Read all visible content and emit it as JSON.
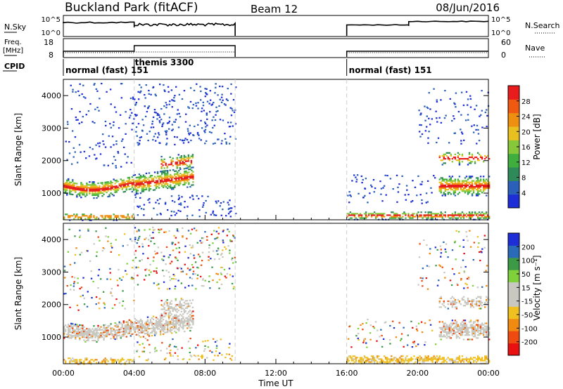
{
  "header": {
    "title": "Buckland Park (fitACF)",
    "beam": "Beam 12",
    "date": "08/Jun/2016"
  },
  "top_panels": {
    "nsky_label": "N.Sky",
    "nsky_ticks": [
      "10^5",
      "10^0"
    ],
    "nsearch_label": "N.Search",
    "nsearch_ticks": [
      "10^5",
      "10^0"
    ],
    "freq_label": "Freq.",
    "freq_unit": "[MHz]",
    "freq_ticks": [
      "18",
      "8"
    ],
    "nave_label": "Nave",
    "nave_ticks": [
      "60",
      "0"
    ],
    "cpid_label": "CPID",
    "cpid_segments": [
      {
        "label": "normal (fast) 151",
        "start": 0,
        "end": 4
      },
      {
        "label": "themis 3300",
        "start": 4,
        "end": 9.7
      },
      {
        "label": "normal (fast) 151",
        "start": 16,
        "end": 24
      }
    ]
  },
  "colors": {
    "power_scale": [
      "#1e2ed6",
      "#2a60b8",
      "#2f8a5a",
      "#3fae3f",
      "#86c83a",
      "#e8c020",
      "#ef8f10",
      "#ef5a10",
      "#e81c1c"
    ],
    "velocity_scale": [
      "#1e2ed6",
      "#2a6ab8",
      "#3c9a46",
      "#7fd03a",
      "#c8c8c0",
      "#c8c8c0",
      "#f0c020",
      "#f08a10",
      "#ef4a10",
      "#e81010"
    ]
  },
  "chart_data": [
    {
      "type": "heatmap",
      "title": "",
      "xlabel": "",
      "ylabel": "Slant Range [km]",
      "xlim": [
        0,
        24
      ],
      "ylim": [
        180,
        4500
      ],
      "x_tick_labels": [
        "00:00",
        "04:00",
        "08:00",
        "12:00",
        "16:00",
        "20:00",
        "00:00"
      ],
      "y_ticks": [
        1000,
        2000,
        3000,
        4000
      ],
      "colorbar": {
        "label": "Power [dB]",
        "ticks": [
          "4",
          "8",
          "12",
          "16",
          "20",
          "24",
          "28"
        ],
        "range": [
          0,
          30
        ]
      },
      "data_gaps": [
        [
          9.7,
          16.0
        ]
      ]
    },
    {
      "type": "heatmap",
      "title": "",
      "xlabel": "Time UT",
      "ylabel": "Slant Range [km]",
      "xlim": [
        0,
        24
      ],
      "ylim": [
        180,
        4500
      ],
      "x_tick_labels": [
        "00:00",
        "04:00",
        "08:00",
        "12:00",
        "16:00",
        "20:00",
        "00:00"
      ],
      "y_ticks": [
        1000,
        2000,
        3000,
        4000
      ],
      "colorbar": {
        "label": "Velocity [m s⁻¹]",
        "ticks": [
          "200",
          "100",
          "50",
          "15",
          "-15",
          "-50",
          "-100",
          "-200"
        ]
      },
      "data_gaps": [
        [
          9.7,
          16.0
        ]
      ]
    }
  ]
}
